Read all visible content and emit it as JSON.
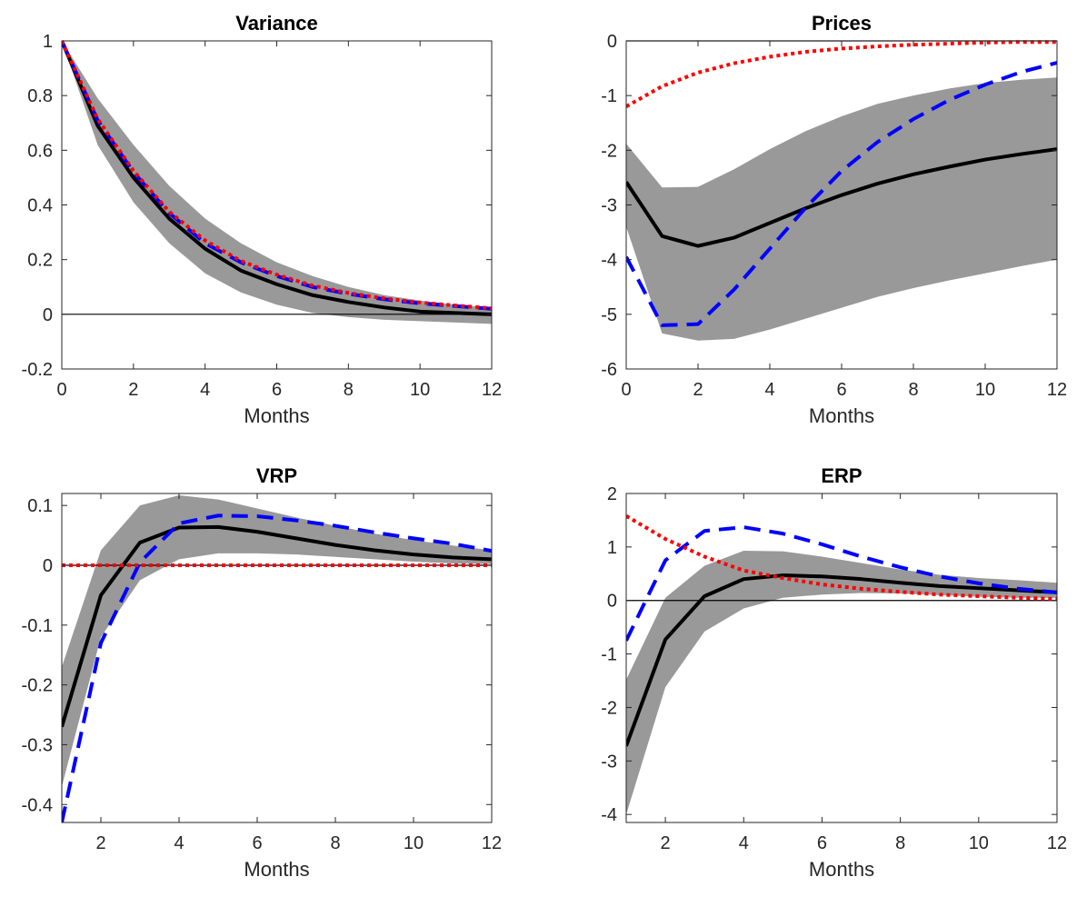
{
  "colors": {
    "band": "#999999",
    "median": "#000000",
    "dashed": "#0000ff",
    "dotted": "#ff0000",
    "zero": "#000000",
    "axes": "#262626"
  },
  "chart_data": [
    {
      "id": "variance",
      "type": "line",
      "title": "Variance",
      "xlabel": "Months",
      "ylabel": "",
      "xlim": [
        0,
        12
      ],
      "ylim": [
        -0.2,
        1
      ],
      "xticks": [
        0,
        2,
        4,
        6,
        8,
        10,
        12
      ],
      "yticks": [
        -0.2,
        0,
        0.2,
        0.4,
        0.6,
        0.8,
        1
      ],
      "ytick_labels": [
        "-0.2",
        "0",
        "0.2",
        "0.4",
        "0.6",
        "0.8",
        "1"
      ],
      "zero_line": true,
      "x": [
        0,
        1,
        2,
        3,
        4,
        5,
        6,
        7,
        8,
        9,
        10,
        11,
        12
      ],
      "band": {
        "lower": [
          1.0,
          0.62,
          0.41,
          0.26,
          0.15,
          0.08,
          0.035,
          0.005,
          -0.01,
          -0.02,
          -0.025,
          -0.03,
          -0.035
        ],
        "upper": [
          1.0,
          0.79,
          0.62,
          0.47,
          0.35,
          0.26,
          0.19,
          0.14,
          0.1,
          0.07,
          0.05,
          0.035,
          0.025
        ]
      },
      "series": [
        {
          "style": "solid",
          "values": [
            1.0,
            0.69,
            0.5,
            0.35,
            0.24,
            0.16,
            0.11,
            0.07,
            0.045,
            0.025,
            0.01,
            0.005,
            0.0
          ]
        },
        {
          "style": "dashed",
          "values": [
            1.0,
            0.71,
            0.52,
            0.37,
            0.26,
            0.19,
            0.14,
            0.1,
            0.075,
            0.055,
            0.04,
            0.03,
            0.02
          ]
        },
        {
          "style": "dotted",
          "values": [
            1.0,
            0.715,
            0.525,
            0.375,
            0.27,
            0.195,
            0.145,
            0.105,
            0.078,
            0.058,
            0.043,
            0.032,
            0.022
          ]
        }
      ]
    },
    {
      "id": "prices",
      "type": "line",
      "title": "Prices",
      "xlabel": "Months",
      "ylabel": "",
      "xlim": [
        0,
        12
      ],
      "ylim": [
        -6,
        0
      ],
      "xticks": [
        0,
        2,
        4,
        6,
        8,
        10,
        12
      ],
      "yticks": [
        -6,
        -5,
        -4,
        -3,
        -2,
        -1,
        0
      ],
      "ytick_labels": [
        "-6",
        "-5",
        "-4",
        "-3",
        "-2",
        "-1",
        "0"
      ],
      "zero_line": true,
      "x": [
        0,
        1,
        2,
        3,
        4,
        5,
        6,
        7,
        8,
        9,
        10,
        11,
        12
      ],
      "band": {
        "lower": [
          -3.4,
          -5.35,
          -5.48,
          -5.45,
          -5.28,
          -5.08,
          -4.88,
          -4.68,
          -4.52,
          -4.38,
          -4.25,
          -4.12,
          -4.0
        ],
        "upper": [
          -1.88,
          -2.68,
          -2.67,
          -2.35,
          -1.98,
          -1.65,
          -1.38,
          -1.15,
          -1.0,
          -0.87,
          -0.77,
          -0.71,
          -0.67
        ]
      },
      "series": [
        {
          "style": "solid",
          "values": [
            -2.58,
            -3.57,
            -3.75,
            -3.6,
            -3.33,
            -3.06,
            -2.82,
            -2.61,
            -2.44,
            -2.3,
            -2.17,
            -2.07,
            -1.98
          ]
        },
        {
          "style": "dashed",
          "values": [
            -3.95,
            -5.2,
            -5.18,
            -4.55,
            -3.8,
            -3.05,
            -2.38,
            -1.85,
            -1.43,
            -1.08,
            -0.8,
            -0.57,
            -0.4
          ]
        },
        {
          "style": "dotted",
          "values": [
            -1.2,
            -0.83,
            -0.58,
            -0.41,
            -0.29,
            -0.2,
            -0.14,
            -0.1,
            -0.07,
            -0.05,
            -0.03,
            -0.02,
            -0.02
          ]
        }
      ]
    },
    {
      "id": "vrp",
      "type": "line",
      "title": "VRP",
      "xlabel": "Months",
      "ylabel": "",
      "xlim": [
        1,
        12
      ],
      "ylim": [
        -0.43,
        0.12
      ],
      "xticks": [
        2,
        4,
        6,
        8,
        10,
        12
      ],
      "yticks": [
        -0.4,
        -0.3,
        -0.2,
        -0.1,
        0,
        0.1
      ],
      "ytick_labels": [
        "-0.4",
        "-0.3",
        "-0.2",
        "-0.1",
        "0",
        "0.1"
      ],
      "zero_line": true,
      "x": [
        1,
        2,
        3,
        4,
        5,
        6,
        7,
        8,
        9,
        10,
        11,
        12
      ],
      "band": {
        "lower": [
          -0.37,
          -0.12,
          -0.025,
          0.01,
          0.02,
          0.02,
          0.018,
          0.014,
          0.01,
          0.006,
          0.003,
          0.002
        ],
        "upper": [
          -0.17,
          0.025,
          0.1,
          0.117,
          0.11,
          0.095,
          0.08,
          0.066,
          0.053,
          0.042,
          0.033,
          0.025
        ]
      },
      "series": [
        {
          "style": "solid",
          "values": [
            -0.27,
            -0.05,
            0.038,
            0.063,
            0.064,
            0.056,
            0.045,
            0.034,
            0.025,
            0.018,
            0.013,
            0.01
          ]
        },
        {
          "style": "dashed",
          "values": [
            -0.43,
            -0.13,
            0.005,
            0.07,
            0.083,
            0.082,
            0.075,
            0.066,
            0.055,
            0.045,
            0.036,
            0.024
          ]
        },
        {
          "style": "dotted",
          "values": [
            0,
            0,
            0,
            0,
            0,
            0,
            0,
            0,
            0,
            0,
            0,
            0
          ]
        }
      ]
    },
    {
      "id": "erp",
      "type": "line",
      "title": "ERP",
      "xlabel": "Months",
      "ylabel": "",
      "xlim": [
        1,
        12
      ],
      "ylim": [
        -4.15,
        2
      ],
      "xticks": [
        2,
        4,
        6,
        8,
        10,
        12
      ],
      "yticks": [
        -4,
        -3,
        -2,
        -1,
        0,
        1,
        2
      ],
      "ytick_labels": [
        "-4",
        "-3",
        "-2",
        "-1",
        "0",
        "1",
        "2"
      ],
      "zero_line": true,
      "x": [
        1,
        2,
        3,
        4,
        5,
        6,
        7,
        8,
        9,
        10,
        11,
        12
      ],
      "band": {
        "lower": [
          -4.0,
          -1.62,
          -0.58,
          -0.15,
          0.05,
          0.11,
          0.14,
          0.13,
          0.1,
          0.07,
          0.05,
          0.05
        ],
        "upper": [
          -1.48,
          0.05,
          0.65,
          0.93,
          0.92,
          0.82,
          0.7,
          0.58,
          0.48,
          0.42,
          0.38,
          0.33
        ]
      },
      "series": [
        {
          "style": "solid",
          "values": [
            -2.72,
            -0.73,
            0.08,
            0.4,
            0.47,
            0.45,
            0.4,
            0.33,
            0.27,
            0.23,
            0.19,
            0.15
          ]
        },
        {
          "style": "dashed",
          "values": [
            -0.75,
            0.75,
            1.3,
            1.37,
            1.25,
            1.05,
            0.82,
            0.62,
            0.45,
            0.32,
            0.22,
            0.15
          ]
        },
        {
          "style": "dotted",
          "values": [
            1.58,
            1.15,
            0.82,
            0.56,
            0.42,
            0.3,
            0.22,
            0.16,
            0.11,
            0.08,
            0.05,
            0.03
          ]
        }
      ]
    }
  ]
}
